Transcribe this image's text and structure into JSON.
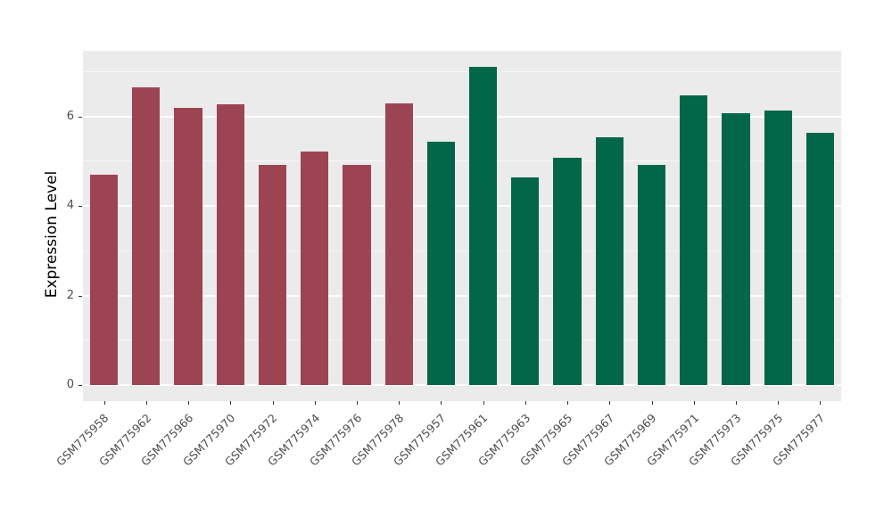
{
  "figure": {
    "background_color": "#FFFFFF",
    "panel_background_color": "#EBEBEB",
    "gridline_color": "#FFFFFF"
  },
  "chart_data": {
    "type": "bar",
    "title": "",
    "xlabel": "",
    "ylabel": "Expression Level",
    "categories": [
      "GSM775958",
      "GSM775962",
      "GSM775966",
      "GSM775970",
      "GSM775972",
      "GSM775974",
      "GSM775976",
      "GSM775978",
      "GSM775957",
      "GSM775961",
      "GSM775963",
      "GSM775965",
      "GSM775967",
      "GSM775969",
      "GSM775971",
      "GSM775973",
      "GSM775975",
      "GSM775977"
    ],
    "values": [
      4.7,
      6.65,
      6.2,
      6.28,
      4.92,
      5.22,
      4.91,
      6.3,
      5.43,
      7.12,
      4.64,
      5.08,
      5.53,
      4.92,
      6.47,
      6.07,
      6.14,
      5.64
    ],
    "bar_colors": [
      "#9C4452",
      "#9C4452",
      "#9C4452",
      "#9C4452",
      "#9C4452",
      "#9C4452",
      "#9C4452",
      "#9C4452",
      "#026748",
      "#026748",
      "#026748",
      "#026748",
      "#026748",
      "#026748",
      "#026748",
      "#026748",
      "#026748",
      "#026748"
    ],
    "group_colors": {
      "group_1": "#9C4452",
      "group_2": "#026748"
    },
    "yticks": [
      0,
      2,
      4,
      6
    ],
    "minor_yticks": [
      1,
      3,
      5,
      7
    ],
    "ylim": [
      -0.36,
      7.47
    ],
    "grid": true,
    "legend": "none",
    "bar_width_fraction": 0.66,
    "x_label_angle_deg": 45
  }
}
